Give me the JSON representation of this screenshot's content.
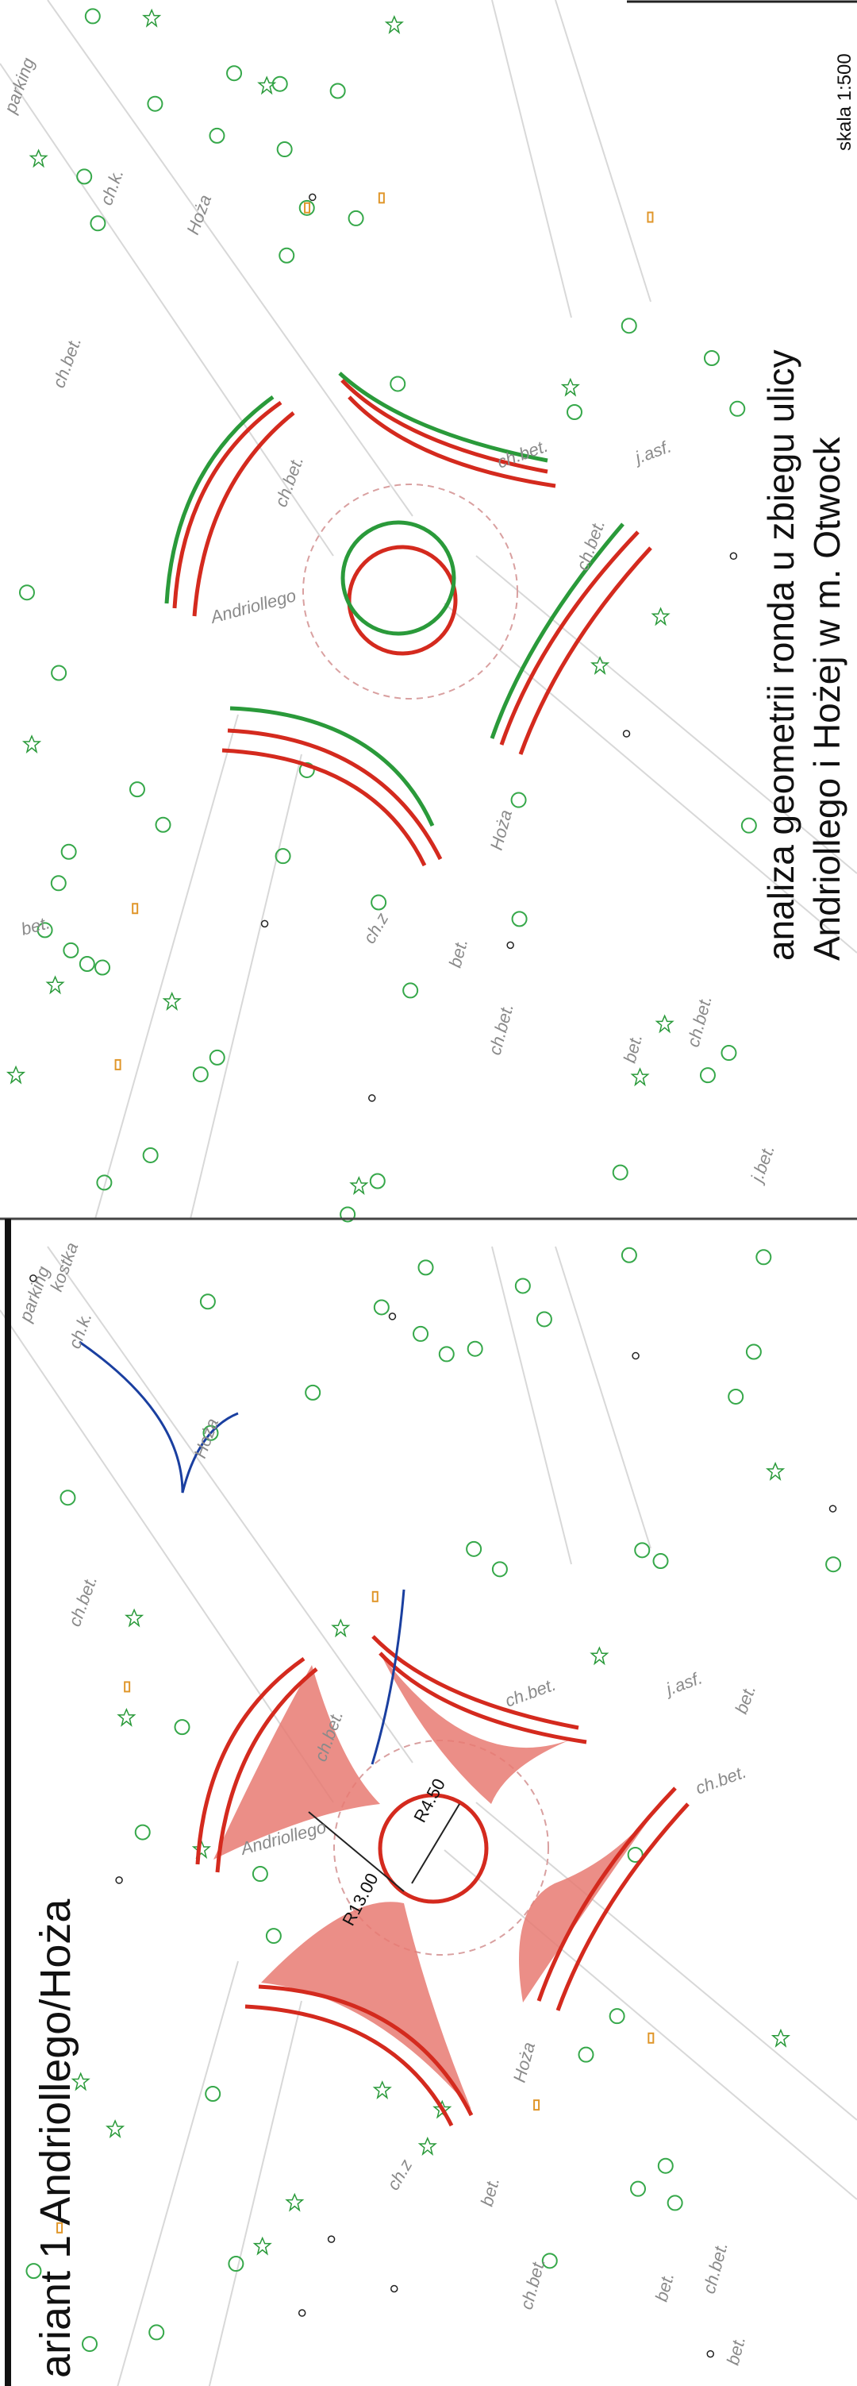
{
  "title_lines": [
    "analiza geometrii ronda u zbiegu ulicy",
    "Andriollego i  Hożej w m. Otwock"
  ],
  "scale": "skala 1:500",
  "variant": "ariant 1 Andriollego/Hoża",
  "panels": [
    {
      "labels": [
        "parking",
        "ch.k.",
        "Hoża",
        "ch.bet.",
        "Andriollego",
        "ch.bet.",
        "ch.bet.",
        "j.asf.",
        "ch.bet.",
        "bet.",
        "Hoża",
        "ch.z",
        "bet.",
        "ch.bet.",
        "bet.",
        "ch.bet.",
        "j.bet."
      ]
    },
    {
      "labels": [
        "kostka",
        "parking",
        "ch.k.",
        "Hoża",
        "ch.bet.",
        "Andriollego",
        "ch.bet.",
        "ch.bet.",
        "j.asf.",
        "ch.bet.",
        "bet.",
        "Hoża",
        "ch.z",
        "bet.",
        "ch.bet.",
        "bet.",
        "ch.bet.",
        "bet."
      ],
      "radii": [
        "R4.50",
        "R13.00"
      ]
    }
  ]
}
